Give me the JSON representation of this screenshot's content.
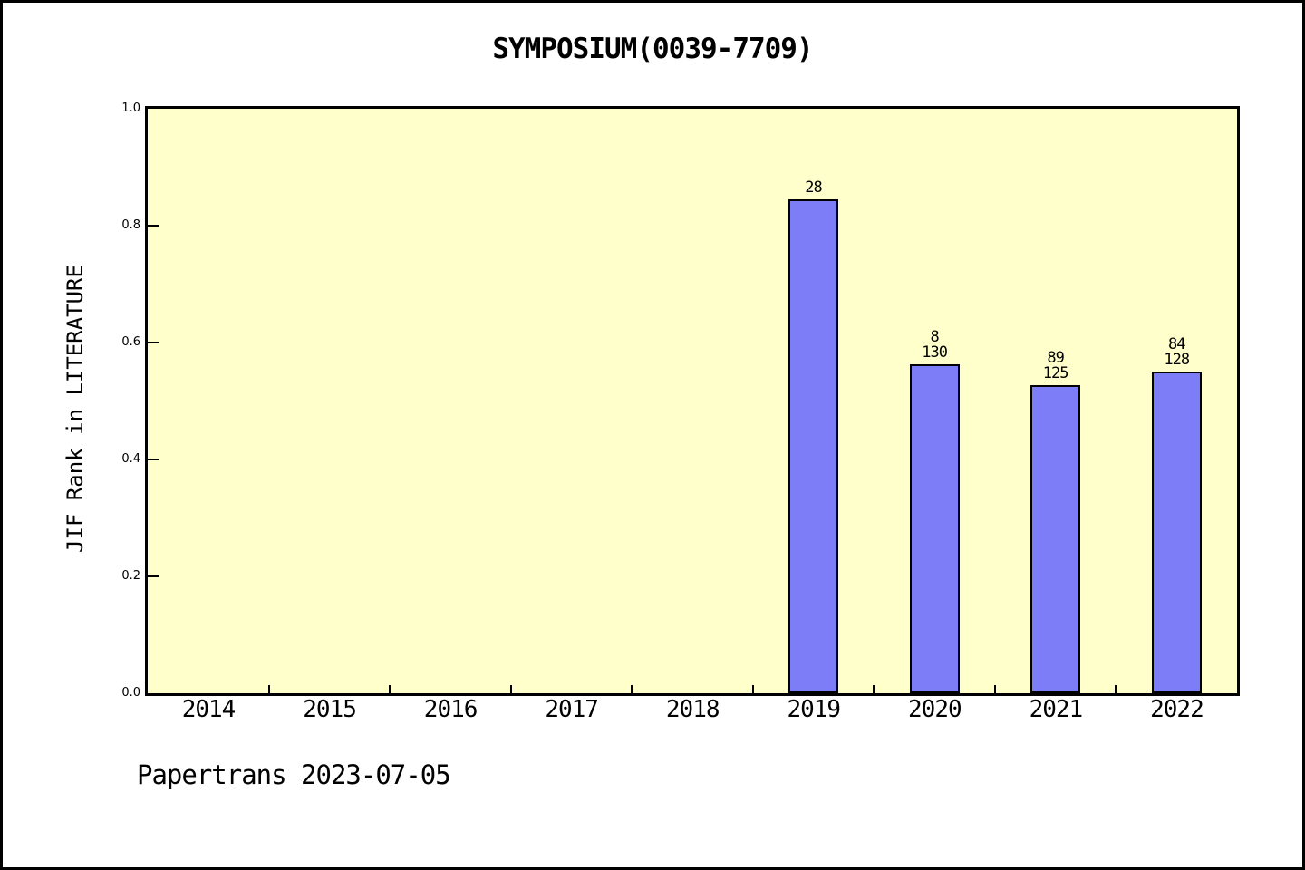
{
  "chart_data": {
    "type": "bar",
    "title": "SYMPOSIUM(0039-7709)",
    "ylabel": "JIF Rank in LITERATURE",
    "xlabel": "",
    "footer": "Papertrans 2023-07-05",
    "categories": [
      "2014",
      "2015",
      "2016",
      "2017",
      "2018",
      "2019",
      "2020",
      "2021",
      "2022"
    ],
    "values": [
      null,
      null,
      null,
      null,
      null,
      0.845,
      0.563,
      0.527,
      0.551
    ],
    "bar_labels": [
      [],
      [],
      [],
      [],
      [],
      [
        "28"
      ],
      [
        "8",
        "130"
      ],
      [
        "89",
        "125"
      ],
      [
        "84",
        "128"
      ]
    ],
    "ylim": [
      0.0,
      1.0
    ],
    "yticks": [
      0.0,
      0.2,
      0.4,
      0.6,
      0.8,
      1.0
    ],
    "grid": false,
    "legend": null,
    "colors": {
      "bar_fill": "#7d7df8",
      "bar_border": "#000000",
      "plot_background": "#ffffcc",
      "axis": "#000000",
      "page_background": "#ffffff"
    }
  }
}
